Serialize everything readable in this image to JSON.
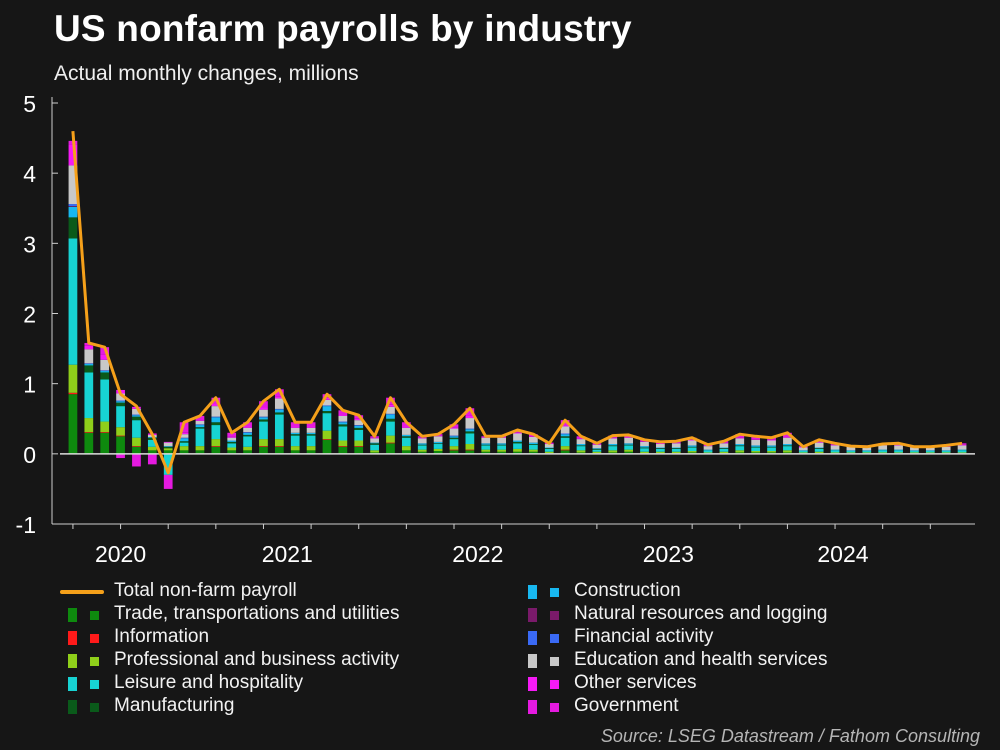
{
  "title": "US nonfarm payrolls by industry",
  "subtitle": "Actual monthly changes, millions",
  "source": "Source: LSEG Datastream / Fathom Consulting",
  "colors": {
    "background": "#161616",
    "total": "#f5a01a",
    "trade": "#0e8a0e",
    "information": "#ff1a1a",
    "professional": "#8fcf1a",
    "leisure": "#17d3d3",
    "manufacturing": "#0a5a1a",
    "construction": "#18b8f0",
    "natural": "#7a1a6a",
    "financial": "#3a6af5",
    "education": "#c8c8c8",
    "other": "#f51af5",
    "government": "#e51ae0"
  },
  "chart_data": {
    "type": "bar",
    "stacked": true,
    "ylim": [
      -1,
      5
    ],
    "yticks": [
      "-1",
      "0",
      "1",
      "2",
      "3",
      "4",
      "5"
    ],
    "xticks": [
      {
        "label": "2020",
        "index": 3
      },
      {
        "label": "2021",
        "index": 13.5
      },
      {
        "label": "2022",
        "index": 25.5
      },
      {
        "label": "2023",
        "index": 37.5
      },
      {
        "label": "2024",
        "index": 48.5
      }
    ],
    "months": [
      "2020-06",
      "2020-07",
      "2020-08",
      "2020-09",
      "2020-10",
      "2020-11",
      "2020-12",
      "2021-01",
      "2021-02",
      "2021-03",
      "2021-04",
      "2021-05",
      "2021-06",
      "2021-07",
      "2021-08",
      "2021-09",
      "2021-10",
      "2021-11",
      "2021-12",
      "2022-01",
      "2022-02",
      "2022-03",
      "2022-04",
      "2022-05",
      "2022-06",
      "2022-07",
      "2022-08",
      "2022-09",
      "2022-10",
      "2022-11",
      "2022-12",
      "2023-01",
      "2023-02",
      "2023-03",
      "2023-04",
      "2023-05",
      "2023-06",
      "2023-07",
      "2023-08",
      "2023-09",
      "2023-10",
      "2023-11",
      "2023-12",
      "2024-01",
      "2024-02",
      "2024-03",
      "2024-04",
      "2024-05",
      "2024-06",
      "2024-07",
      "2024-08",
      "2024-09",
      "2024-10",
      "2024-11",
      "2024-12",
      "2025-01",
      "2025-02"
    ],
    "total": [
      4.6,
      1.58,
      1.52,
      0.85,
      0.68,
      0.28,
      -0.27,
      0.45,
      0.54,
      0.8,
      0.3,
      0.45,
      0.75,
      0.92,
      0.45,
      0.45,
      0.85,
      0.62,
      0.55,
      0.25,
      0.8,
      0.45,
      0.25,
      0.28,
      0.42,
      0.65,
      0.25,
      0.25,
      0.34,
      0.28,
      0.15,
      0.48,
      0.25,
      0.15,
      0.26,
      0.27,
      0.2,
      0.17,
      0.18,
      0.23,
      0.13,
      0.18,
      0.28,
      0.25,
      0.23,
      0.3,
      0.1,
      0.2,
      0.15,
      0.11,
      0.1,
      0.14,
      0.15,
      0.1,
      0.1,
      0.12,
      0.15
    ],
    "series": [
      {
        "name": "Trade, transportations and utilities",
        "key": "trade",
        "values": [
          0.85,
          0.3,
          0.3,
          0.25,
          0.1,
          0.05,
          0.05,
          0.05,
          0.05,
          0.1,
          0.05,
          0.05,
          0.1,
          0.1,
          0.05,
          0.05,
          0.2,
          0.1,
          0.1,
          0.02,
          0.15,
          0.05,
          0.03,
          0.04,
          0.05,
          0.05,
          0.03,
          0.03,
          0.03,
          0.03,
          0.01,
          0.05,
          0.02,
          0.01,
          0.02,
          0.03,
          0.01,
          0.01,
          0.01,
          0.02,
          0.01,
          0.01,
          0.02,
          0.02,
          0.02,
          0.02,
          0.01,
          0.01,
          0.01,
          0.01,
          0.01,
          0.01,
          0.01,
          0.01,
          0.01,
          0.01,
          0.01
        ]
      },
      {
        "name": "Information",
        "key": "information",
        "values": [
          0.02,
          0.01,
          0.01,
          0.01,
          0.01,
          0,
          0,
          0,
          0,
          0.01,
          0,
          0,
          0.01,
          0.01,
          0,
          0,
          0.01,
          0.01,
          0.01,
          0,
          0.01,
          0,
          0,
          0,
          0.01,
          0.01,
          0,
          0,
          0,
          0,
          0,
          0.01,
          0,
          0,
          0,
          0,
          0,
          0,
          0,
          0,
          0,
          0,
          0,
          0,
          0,
          0,
          0,
          0,
          0,
          0,
          0,
          0,
          0,
          0,
          0,
          0,
          0
        ]
      },
      {
        "name": "Professional and business activity",
        "key": "professional",
        "values": [
          0.4,
          0.2,
          0.15,
          0.12,
          0.12,
          0.05,
          0.03,
          0.06,
          0.06,
          0.1,
          0.04,
          0.05,
          0.1,
          0.1,
          0.06,
          0.06,
          0.12,
          0.08,
          0.08,
          0.03,
          0.1,
          0.06,
          0.03,
          0.03,
          0.05,
          0.08,
          0.03,
          0.03,
          0.04,
          0.03,
          0.02,
          0.05,
          0.03,
          0.02,
          0.03,
          0.03,
          0.02,
          0.02,
          0.02,
          0.02,
          0.01,
          0.02,
          0.03,
          0.02,
          0.02,
          0.03,
          0.01,
          0.02,
          0.01,
          0.01,
          0.01,
          0.01,
          0.01,
          0.01,
          0.01,
          0.01,
          0.01
        ]
      },
      {
        "name": "Leisure and hospitality",
        "key": "leisure",
        "values": [
          1.8,
          0.65,
          0.6,
          0.3,
          0.25,
          0.1,
          -0.3,
          0.05,
          0.25,
          0.2,
          0.06,
          0.15,
          0.25,
          0.35,
          0.15,
          0.15,
          0.25,
          0.2,
          0.15,
          0.08,
          0.2,
          0.12,
          0.06,
          0.07,
          0.1,
          0.15,
          0.06,
          0.06,
          0.08,
          0.07,
          0.04,
          0.12,
          0.06,
          0.03,
          0.06,
          0.06,
          0.05,
          0.04,
          0.04,
          0.05,
          0.03,
          0.04,
          0.06,
          0.05,
          0.05,
          0.06,
          0.02,
          0.04,
          0.03,
          0.02,
          0.02,
          0.03,
          0.03,
          0.02,
          0.02,
          0.02,
          0.03
        ]
      },
      {
        "name": "Manufacturing",
        "key": "manufacturing",
        "values": [
          0.3,
          0.1,
          0.1,
          0.05,
          0.05,
          0.03,
          0.02,
          0.02,
          0.02,
          0.04,
          0.02,
          0.02,
          0.03,
          0.03,
          0.02,
          0.02,
          0.03,
          0.03,
          0.03,
          0.02,
          0.04,
          0.02,
          0.01,
          0.01,
          0.02,
          0.03,
          0.01,
          0.01,
          0.02,
          0.01,
          0.01,
          0.02,
          0.01,
          0.01,
          0.01,
          0.01,
          0.01,
          0.01,
          0.01,
          0.01,
          0,
          0.01,
          0.01,
          0.01,
          0.01,
          0.01,
          0,
          0.01,
          0,
          0,
          0,
          0,
          0,
          0,
          0,
          0,
          0
        ]
      },
      {
        "name": "Construction",
        "key": "construction",
        "values": [
          0.15,
          0.02,
          0.02,
          0.02,
          0.02,
          0.01,
          0.01,
          0.04,
          0.03,
          0.07,
          0.02,
          0.03,
          0.03,
          0.04,
          0.02,
          0.02,
          0.07,
          0.03,
          0.03,
          0.01,
          0.06,
          0.02,
          0.02,
          0.02,
          0.02,
          0.03,
          0.02,
          0.02,
          0.02,
          0.02,
          0.01,
          0.03,
          0.02,
          0.01,
          0.02,
          0.02,
          0.02,
          0.01,
          0.01,
          0.02,
          0.01,
          0.01,
          0.02,
          0.02,
          0.02,
          0.02,
          0.01,
          0.01,
          0.01,
          0.01,
          0.01,
          0.01,
          0.01,
          0.01,
          0.01,
          0.01,
          0.01
        ]
      },
      {
        "name": "Natural resources and logging",
        "key": "natural",
        "values": [
          0.01,
          0,
          0,
          0,
          0,
          0,
          0,
          0,
          0,
          0,
          0,
          0,
          0,
          0,
          0,
          0,
          0,
          0,
          0,
          0,
          0,
          0,
          0,
          0,
          0,
          0,
          0,
          0,
          0,
          0,
          0,
          0,
          0,
          0,
          0,
          0,
          0,
          0,
          0,
          0,
          0,
          0,
          0,
          0,
          0,
          0,
          0,
          0,
          0,
          0,
          0,
          0,
          0,
          0,
          0,
          0,
          0
        ]
      },
      {
        "name": "Financial activity",
        "key": "financial",
        "values": [
          0.03,
          0.01,
          0.01,
          0.01,
          0.01,
          0,
          0,
          0.01,
          0.01,
          0.01,
          0,
          0.01,
          0.01,
          0.01,
          0,
          0,
          0.01,
          0.01,
          0.01,
          0,
          0.01,
          0,
          0,
          0,
          0.01,
          0.01,
          0,
          0,
          0,
          0,
          0,
          0.01,
          0,
          0,
          0,
          0,
          0,
          0,
          0,
          0,
          0,
          0,
          0,
          0,
          0,
          0,
          0,
          0,
          0,
          0,
          0,
          0,
          0,
          0,
          0,
          0,
          0
        ]
      },
      {
        "name": "Education and health services",
        "key": "education",
        "values": [
          0.55,
          0.2,
          0.15,
          0.1,
          0.08,
          0.03,
          0.05,
          0.05,
          0.05,
          0.15,
          0.04,
          0.06,
          0.1,
          0.15,
          0.07,
          0.07,
          0.08,
          0.08,
          0.07,
          0.06,
          0.1,
          0.1,
          0.07,
          0.08,
          0.1,
          0.15,
          0.08,
          0.08,
          0.1,
          0.08,
          0.05,
          0.1,
          0.07,
          0.05,
          0.08,
          0.08,
          0.06,
          0.05,
          0.06,
          0.07,
          0.05,
          0.06,
          0.08,
          0.08,
          0.07,
          0.09,
          0.04,
          0.07,
          0.06,
          0.05,
          0.05,
          0.06,
          0.06,
          0.04,
          0.04,
          0.05,
          0.06
        ]
      },
      {
        "name": "Other services",
        "key": "other",
        "values": [
          0.3,
          0.05,
          0.08,
          0.05,
          0.03,
          0.02,
          0.01,
          0.02,
          0.02,
          0.03,
          0.02,
          0.02,
          0.03,
          0.03,
          0.02,
          0.02,
          0.03,
          0.02,
          0.02,
          0.01,
          0.03,
          0.02,
          0.01,
          0.01,
          0.02,
          0.03,
          0.01,
          0.01,
          0.01,
          0.01,
          0.01,
          0.02,
          0.01,
          0.01,
          0.01,
          0.01,
          0.01,
          0.01,
          0.01,
          0.01,
          0.01,
          0.01,
          0.01,
          0.01,
          0.01,
          0.01,
          0.01,
          0.01,
          0.01,
          0.01,
          0.01,
          0.01,
          0.01,
          0.01,
          0.01,
          0.01,
          0.01
        ]
      },
      {
        "name": "Government",
        "key": "government",
        "values": [
          0.05,
          0.04,
          0.1,
          -0.06,
          -0.18,
          -0.15,
          -0.2,
          0.15,
          0.05,
          0.09,
          0.05,
          0.06,
          0.09,
          0.1,
          0.06,
          0.06,
          0.05,
          0.06,
          0.05,
          0.02,
          0.1,
          0.06,
          0.02,
          0.02,
          0.04,
          0.11,
          0.01,
          0.01,
          0.03,
          0.03,
          0.01,
          0.07,
          0.03,
          0.01,
          0.03,
          0.03,
          0.02,
          0.02,
          0.02,
          0.03,
          0.01,
          0.02,
          0.05,
          0.04,
          0.04,
          0.06,
          0.01,
          0.03,
          0.02,
          0.01,
          0.01,
          0.02,
          0.02,
          0.01,
          0.01,
          0.01,
          0.02
        ]
      }
    ]
  },
  "legend": [
    {
      "label": "Total non-farm payroll",
      "key": "total",
      "type": "line",
      "col": 0,
      "row": 0
    },
    {
      "label": "Trade, transportations and utilities",
      "key": "trade",
      "type": "bar",
      "col": 0,
      "row": 1
    },
    {
      "label": "Information",
      "key": "information",
      "type": "bar",
      "col": 0,
      "row": 2
    },
    {
      "label": "Professional and business activity",
      "key": "professional",
      "type": "bar",
      "col": 0,
      "row": 3
    },
    {
      "label": "Leisure and hospitality",
      "key": "leisure",
      "type": "bar",
      "col": 0,
      "row": 4
    },
    {
      "label": "Manufacturing",
      "key": "manufacturing",
      "type": "bar",
      "col": 0,
      "row": 5
    },
    {
      "label": "Construction",
      "key": "construction",
      "type": "bar",
      "col": 1,
      "row": 0
    },
    {
      "label": "Natural resources and logging",
      "key": "natural",
      "type": "bar",
      "col": 1,
      "row": 1
    },
    {
      "label": "Financial activity",
      "key": "financial",
      "type": "bar",
      "col": 1,
      "row": 2
    },
    {
      "label": "Education and health services",
      "key": "education",
      "type": "bar",
      "col": 1,
      "row": 3
    },
    {
      "label": "Other services",
      "key": "other",
      "type": "bar",
      "col": 1,
      "row": 4
    },
    {
      "label": "Government",
      "key": "government",
      "type": "bar",
      "col": 1,
      "row": 5
    }
  ]
}
